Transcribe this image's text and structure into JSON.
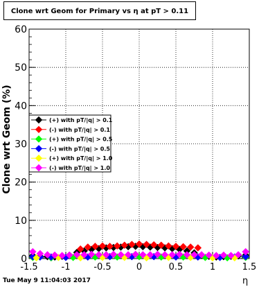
{
  "chart_data": {
    "type": "scatter",
    "title": "Clone wrt Geom for Primary vs  η at pT > 0.11",
    "xlabel": "η",
    "ylabel": "Clone wrt Geom (%)",
    "xlim": [
      -1.5,
      1.5
    ],
    "ylim": [
      0,
      60
    ],
    "x_ticks": [
      "-1.5",
      "-1",
      "-0.5",
      "0",
      "0.5",
      "1",
      "1.5"
    ],
    "y_ticks": [
      "0",
      "10",
      "20",
      "30",
      "40",
      "50",
      "60"
    ],
    "grid": true,
    "legend_position": "upper-left",
    "timestamp": "Tue May  9 11:04:03 2017",
    "series": [
      {
        "name": "(+) with pT/|q| > 0.1",
        "color": "#000000",
        "x": [
          -1.45,
          -1.35,
          -1.25,
          -1.15,
          -1.05,
          -0.95,
          -0.85,
          -0.75,
          -0.65,
          -0.55,
          -0.45,
          -0.35,
          -0.25,
          -0.15,
          -0.05,
          0.05,
          0.15,
          0.25,
          0.35,
          0.45,
          0.55,
          0.65,
          0.75,
          0.85,
          0.95,
          1.05,
          1.15,
          1.25,
          1.35,
          1.45
        ],
        "y": [
          0.8,
          0.6,
          0.5,
          0.4,
          0.6,
          0.9,
          1.6,
          2.0,
          2.4,
          2.6,
          2.8,
          2.9,
          3.0,
          3.1,
          3.2,
          3.1,
          3.0,
          2.9,
          2.8,
          2.6,
          2.4,
          2.0,
          1.5,
          0.9,
          0.6,
          0.4,
          0.5,
          0.6,
          0.7,
          0.9
        ]
      },
      {
        "name": "(-) with pT/|q| > 0.1",
        "color": "#ff0000",
        "x": [
          -0.8,
          -0.7,
          -0.6,
          -0.5,
          -0.4,
          -0.3,
          -0.2,
          -0.1,
          0.0,
          0.1,
          0.2,
          0.3,
          0.4,
          0.5,
          0.6,
          0.7,
          0.8
        ],
        "y": [
          2.5,
          3.0,
          3.2,
          3.3,
          3.2,
          3.3,
          3.5,
          3.7,
          3.8,
          3.7,
          3.6,
          3.5,
          3.3,
          3.2,
          3.1,
          3.0,
          2.8
        ]
      },
      {
        "name": "(+) with pT/|q| > 0.5",
        "color": "#00ff00",
        "x": [
          -1.45,
          -1.2,
          -0.9,
          -0.6,
          -0.3,
          0.0,
          0.3,
          0.6,
          0.9,
          1.2,
          1.45
        ],
        "y": [
          0.3,
          0.2,
          0.3,
          0.4,
          0.4,
          0.5,
          0.4,
          0.4,
          0.3,
          0.2,
          0.3
        ]
      },
      {
        "name": "(-) with pT/|q| > 0.5",
        "color": "#0000ff",
        "x": [
          -1.45,
          -1.35,
          -1.2,
          -1.0,
          -0.7,
          -0.4,
          -0.1,
          0.2,
          0.5,
          0.8,
          1.1,
          1.3,
          1.45
        ],
        "y": [
          0.5,
          0.4,
          0.4,
          0.3,
          0.4,
          0.5,
          0.5,
          0.5,
          0.4,
          0.4,
          0.3,
          0.4,
          0.5
        ]
      },
      {
        "name": "(+) with pT/|q| > 1.0",
        "color": "#ffff00",
        "x": [
          -1.4,
          -1.1,
          -0.8,
          -0.5,
          -0.2,
          0.1,
          0.4,
          0.7,
          1.0,
          1.3
        ],
        "y": [
          0.2,
          0.3,
          0.2,
          0.3,
          0.3,
          0.2,
          0.3,
          0.3,
          0.2,
          0.2
        ]
      },
      {
        "name": "(-) with pT/|q| > 1.0",
        "color": "#ff00ff",
        "x": [
          -1.45,
          -1.35,
          -1.25,
          -1.15,
          -1.05,
          -0.95,
          -0.85,
          -0.75,
          -0.65,
          -0.55,
          -0.45,
          -0.35,
          -0.25,
          -0.15,
          -0.05,
          0.05,
          0.15,
          0.25,
          0.35,
          0.45,
          0.55,
          0.65,
          0.75,
          0.85,
          0.95,
          1.05,
          1.15,
          1.25,
          1.35,
          1.45
        ],
        "y": [
          1.8,
          1.3,
          1.0,
          0.9,
          0.8,
          0.9,
          1.0,
          1.0,
          1.1,
          1.0,
          1.0,
          1.1,
          1.0,
          1.0,
          1.1,
          1.0,
          1.0,
          1.1,
          1.0,
          1.0,
          1.1,
          1.0,
          1.0,
          1.0,
          0.9,
          0.8,
          0.9,
          0.8,
          1.0,
          1.8
        ]
      }
    ]
  }
}
